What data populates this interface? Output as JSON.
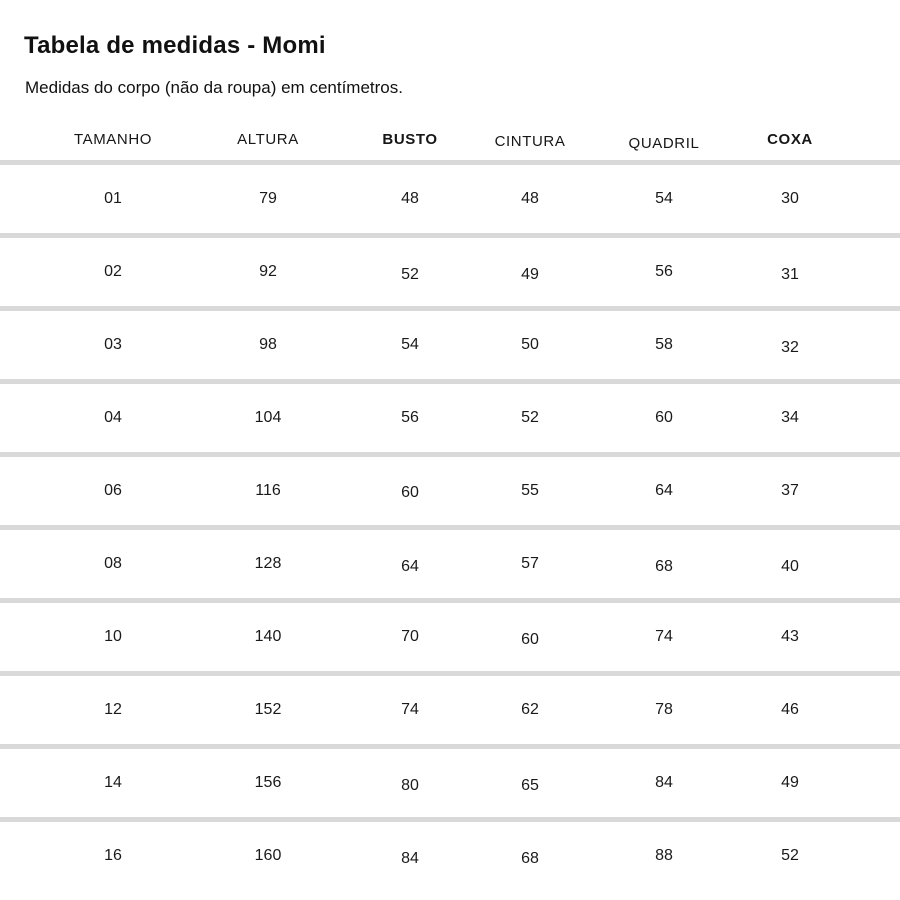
{
  "page": {
    "title": "Tabela de medidas - Momi",
    "subtitle": "Medidas do corpo (não da roupa) em centímetros."
  },
  "table": {
    "columns": [
      {
        "label": "TAMANHO",
        "bold": false
      },
      {
        "label": "ALTURA",
        "bold": false
      },
      {
        "label": "BUSTO",
        "bold": true
      },
      {
        "label": "CINTURA",
        "bold": false
      },
      {
        "label": "QUADRIL",
        "bold": false
      },
      {
        "label": "COXA",
        "bold": true
      }
    ],
    "rows": [
      {
        "cells": [
          "01",
          "79",
          "48",
          "48",
          "54",
          "30"
        ]
      },
      {
        "cells": [
          "02",
          "92",
          "52",
          "49",
          "56",
          "31"
        ]
      },
      {
        "cells": [
          "03",
          "98",
          "54",
          "50",
          "58",
          "32"
        ]
      },
      {
        "cells": [
          "04",
          "104",
          "56",
          "52",
          "60",
          "34"
        ]
      },
      {
        "cells": [
          "06",
          "116",
          "60",
          "55",
          "64",
          "37"
        ]
      },
      {
        "cells": [
          "08",
          "128",
          "64",
          "57",
          "68",
          "40"
        ]
      },
      {
        "cells": [
          "10",
          "140",
          "70",
          "60",
          "74",
          "43"
        ]
      },
      {
        "cells": [
          "12",
          "152",
          "74",
          "62",
          "78",
          "46"
        ]
      },
      {
        "cells": [
          "14",
          "156",
          "80",
          "65",
          "84",
          "49"
        ]
      },
      {
        "cells": [
          "16",
          "160",
          "84",
          "68",
          "88",
          "52"
        ]
      }
    ]
  },
  "units": "cm",
  "colors": {
    "background": "#ffffff",
    "text": "#1a1a1a",
    "divider": "#d9d9d9"
  }
}
